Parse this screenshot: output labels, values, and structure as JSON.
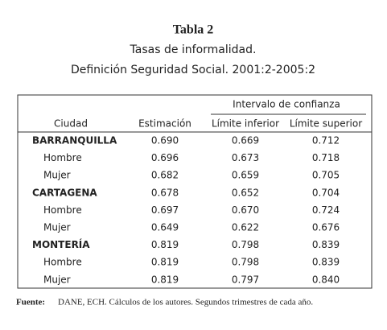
{
  "header": {
    "title": "Tabla 2",
    "subtitle": "Tasas de informalidad.",
    "subtitle2": "Definición Seguridad Social. 2001:2-2005:2"
  },
  "table": {
    "group_header": "Intervalo de confianza",
    "columns": [
      "Ciudad",
      "Estimación",
      "Límite inferior",
      "Límite superior"
    ],
    "rows": [
      [
        "BARRANQUILLA",
        "0.690",
        "0.669",
        "0.712"
      ],
      [
        "Hombre",
        "0.696",
        "0.673",
        "0.718"
      ],
      [
        "Mujer",
        "0.682",
        "0.659",
        "0.705"
      ],
      [
        "CARTAGENA",
        "0.678",
        "0.652",
        "0.704"
      ],
      [
        "Hombre",
        "0.697",
        "0.670",
        "0.724"
      ],
      [
        "Mujer",
        "0.649",
        "0.622",
        "0.676"
      ],
      [
        "MONTERÍA",
        "0.819",
        "0.798",
        "0.839"
      ],
      [
        "Hombre",
        "0.819",
        "0.798",
        "0.839"
      ],
      [
        "Mujer",
        "0.819",
        "0.797",
        "0.840"
      ]
    ]
  },
  "footer": {
    "label": "Fuente:",
    "text": "DANE, ECH. Cálculos de los autores. Segundos trimestres de cada año."
  }
}
